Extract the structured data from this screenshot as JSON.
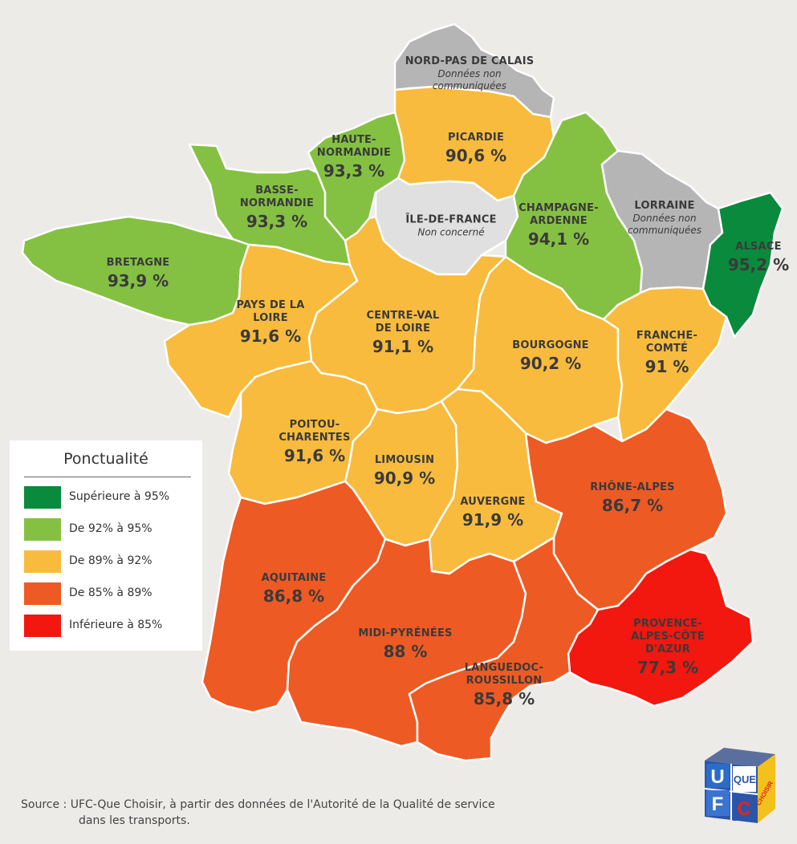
{
  "colors": {
    "sup95": "#0a8a3c",
    "r92_95": "#84c142",
    "r89_92": "#f8bb3d",
    "r85_89": "#ee5a24",
    "inf85": "#f2170f",
    "no_data": "#b5b5b5",
    "not_concerned": "#e0e0e0"
  },
  "regions": {
    "nord": {
      "name": "NORD-PAS DE CALAIS",
      "note": "Données non communiquées"
    },
    "picardie": {
      "name": "PICARDIE",
      "value": "90,6 %",
      "numeric": 90.6
    },
    "hnormandie": {
      "name": "HAUTE-NORMANDIE",
      "value": "93,3 %",
      "numeric": 93.3
    },
    "bnormandie": {
      "name": "BASSE-NORMANDIE",
      "value": "93,3 %",
      "numeric": 93.3
    },
    "bretagne": {
      "name": "BRETAGNE",
      "value": "93,9 %",
      "numeric": 93.9
    },
    "idf": {
      "name": "ÎLE-DE-FRANCE",
      "note": "Non concerné"
    },
    "champagne": {
      "name": "CHAMPAGNE-ARDENNE",
      "value": "94,1 %",
      "numeric": 94.1
    },
    "lorraine": {
      "name": "LORRAINE",
      "note": "Données non communiquées"
    },
    "alsace": {
      "name": "ALSACE",
      "value": "95,2 %",
      "numeric": 95.2
    },
    "paysloire": {
      "name": "PAYS DE LA LOIRE",
      "value": "91,6 %",
      "numeric": 91.6
    },
    "centre": {
      "name": "CENTRE-VAL DE LOIRE",
      "value": "91,1 %",
      "numeric": 91.1
    },
    "bourgogne": {
      "name": "BOURGOGNE",
      "value": "90,2 %",
      "numeric": 90.2
    },
    "franche": {
      "name": "FRANCHE-COMTÉ",
      "value": "91 %",
      "numeric": 91
    },
    "poitou": {
      "name": "POITOU-CHARENTES",
      "value": "91,6 %",
      "numeric": 91.6
    },
    "limousin": {
      "name": "LIMOUSIN",
      "value": "90,9 %",
      "numeric": 90.9
    },
    "auvergne": {
      "name": "AUVERGNE",
      "value": "91,9 %",
      "numeric": 91.9
    },
    "rhone": {
      "name": "RHÔNE-ALPES",
      "value": "86,7 %",
      "numeric": 86.7
    },
    "aquitaine": {
      "name": "AQUITAINE",
      "value": "86,8 %",
      "numeric": 86.8
    },
    "midi": {
      "name": "MIDI-PYRÉNÉES",
      "value": "88 %",
      "numeric": 88
    },
    "languedoc": {
      "name": "LANGUEDOC-ROUSSILLON",
      "value": "85,8 %",
      "numeric": 85.8
    },
    "paca": {
      "name": "PROVENCE-ALPES-CÔTE D'AZUR",
      "value": "77,3 %",
      "numeric": 77.3
    }
  },
  "legend": {
    "title": "Ponctualité",
    "items": [
      {
        "label": "Supérieure à 95%",
        "color": "#0a8a3c"
      },
      {
        "label": "De 92% à 95%",
        "color": "#84c142"
      },
      {
        "label": "De 89% à 92%",
        "color": "#f8bb3d"
      },
      {
        "label": "De 85% à 89%",
        "color": "#ee5a24"
      },
      {
        "label": "Inférieure à 85%",
        "color": "#f2170f"
      }
    ]
  },
  "source": {
    "line1": "Source : UFC-Que Choisir, à partir des données de l'Autorité de la Qualité de service",
    "line2": "dans les transports."
  },
  "logo": {
    "u": "U",
    "f": "F",
    "c": "C",
    "que": "QUE",
    "choisir": "CHOISIR"
  }
}
